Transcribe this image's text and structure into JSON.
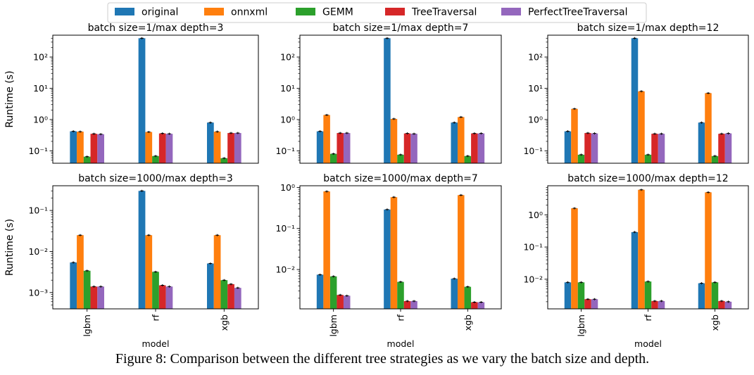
{
  "figure": {
    "caption": "Figure 8: Comparison between the different tree strategies as we vary the batch size and depth."
  },
  "legend": [
    {
      "name": "original",
      "color": "#1f77b4"
    },
    {
      "name": "onnxml",
      "color": "#ff7f0e"
    },
    {
      "name": "GEMM",
      "color": "#2ca02c"
    },
    {
      "name": "TreeTraversal",
      "color": "#d62728"
    },
    {
      "name": "PerfectTreeTraversal",
      "color": "#9467bd"
    }
  ],
  "chart_data": [
    {
      "type": "bar",
      "title": "batch size=1/max depth=3",
      "xlabel": "",
      "ylabel": "Runtime (s)",
      "yscale": "log",
      "ylim": [
        0.04,
        500
      ],
      "yticks": [
        0.1,
        1,
        10,
        100
      ],
      "ytick_labels": [
        "10⁻¹",
        "10⁰",
        "10¹",
        "10²"
      ],
      "categories": [
        "lgbm",
        "rf",
        "xgb"
      ],
      "show_xticks": false,
      "series": [
        {
          "name": "original",
          "values": [
            0.42,
            400,
            0.8
          ]
        },
        {
          "name": "onnxml",
          "values": [
            0.41,
            0.4,
            0.41
          ]
        },
        {
          "name": "GEMM",
          "values": [
            0.065,
            0.068,
            0.058
          ]
        },
        {
          "name": "TreeTraversal",
          "values": [
            0.35,
            0.36,
            0.37
          ]
        },
        {
          "name": "PerfectTreeTraversal",
          "values": [
            0.34,
            0.35,
            0.37
          ]
        }
      ]
    },
    {
      "type": "bar",
      "title": "batch size=1/max depth=7",
      "xlabel": "",
      "ylabel": "",
      "yscale": "log",
      "ylim": [
        0.04,
        500
      ],
      "yticks": [
        0.1,
        1,
        10,
        100
      ],
      "ytick_labels": [
        "10⁻¹",
        "10⁰",
        "10¹",
        "10²"
      ],
      "categories": [
        "lgbm",
        "rf",
        "xgb"
      ],
      "show_xticks": false,
      "series": [
        {
          "name": "original",
          "values": [
            0.42,
            400,
            0.8
          ]
        },
        {
          "name": "onnxml",
          "values": [
            1.4,
            1.05,
            1.2
          ]
        },
        {
          "name": "GEMM",
          "values": [
            0.08,
            0.075,
            0.068
          ]
        },
        {
          "name": "TreeTraversal",
          "values": [
            0.37,
            0.36,
            0.36
          ]
        },
        {
          "name": "PerfectTreeTraversal",
          "values": [
            0.37,
            0.35,
            0.36
          ]
        }
      ]
    },
    {
      "type": "bar",
      "title": "batch size=1/max depth=12",
      "xlabel": "",
      "ylabel": "",
      "yscale": "log",
      "ylim": [
        0.04,
        500
      ],
      "yticks": [
        0.1,
        1,
        10,
        100
      ],
      "ytick_labels": [
        "10⁻¹",
        "10⁰",
        "10¹",
        "10²"
      ],
      "categories": [
        "lgbm",
        "rf",
        "xgb"
      ],
      "show_xticks": false,
      "series": [
        {
          "name": "original",
          "values": [
            0.42,
            400,
            0.8
          ]
        },
        {
          "name": "onnxml",
          "values": [
            2.2,
            8,
            7
          ]
        },
        {
          "name": "GEMM",
          "values": [
            0.075,
            0.075,
            0.068
          ]
        },
        {
          "name": "TreeTraversal",
          "values": [
            0.37,
            0.35,
            0.35
          ]
        },
        {
          "name": "PerfectTreeTraversal",
          "values": [
            0.36,
            0.35,
            0.36
          ]
        }
      ]
    },
    {
      "type": "bar",
      "title": "batch size=1000/max depth=3",
      "xlabel": "model",
      "ylabel": "Runtime (s)",
      "yscale": "log",
      "ylim": [
        0.0004,
        0.4
      ],
      "yticks": [
        0.001,
        0.01,
        0.1
      ],
      "ytick_labels": [
        "10⁻³",
        "10⁻²",
        "10⁻¹"
      ],
      "categories": [
        "lgbm",
        "rf",
        "xgb"
      ],
      "show_xticks": true,
      "series": [
        {
          "name": "original",
          "values": [
            0.0054,
            0.3,
            0.0051
          ]
        },
        {
          "name": "onnxml",
          "values": [
            0.025,
            0.025,
            0.025
          ]
        },
        {
          "name": "GEMM",
          "values": [
            0.0034,
            0.0032,
            0.002
          ]
        },
        {
          "name": "TreeTraversal",
          "values": [
            0.0014,
            0.0015,
            0.0016
          ]
        },
        {
          "name": "PerfectTreeTraversal",
          "values": [
            0.0014,
            0.0014,
            0.0013
          ]
        }
      ]
    },
    {
      "type": "bar",
      "title": "batch size=1000/max depth=7",
      "xlabel": "model",
      "ylabel": "",
      "yscale": "log",
      "ylim": [
        0.0011,
        1.1
      ],
      "yticks": [
        0.01,
        0.1,
        1
      ],
      "ytick_labels": [
        "10⁻²",
        "10⁻¹",
        "10⁰"
      ],
      "categories": [
        "lgbm",
        "rf",
        "xgb"
      ],
      "show_xticks": true,
      "series": [
        {
          "name": "original",
          "values": [
            0.0075,
            0.29,
            0.006
          ]
        },
        {
          "name": "onnxml",
          "values": [
            0.8,
            0.58,
            0.65
          ]
        },
        {
          "name": "GEMM",
          "values": [
            0.0068,
            0.005,
            0.0038
          ]
        },
        {
          "name": "TreeTraversal",
          "values": [
            0.0024,
            0.0017,
            0.0016
          ]
        },
        {
          "name": "PerfectTreeTraversal",
          "values": [
            0.0023,
            0.0017,
            0.0016
          ]
        }
      ]
    },
    {
      "type": "bar",
      "title": "batch size=1000/max depth=12",
      "xlabel": "model",
      "ylabel": "",
      "yscale": "log",
      "ylim": [
        0.0012,
        8
      ],
      "yticks": [
        0.01,
        0.1,
        1
      ],
      "ytick_labels": [
        "10⁻²",
        "10⁻¹",
        "10⁰"
      ],
      "categories": [
        "lgbm",
        "rf",
        "xgb"
      ],
      "show_xticks": true,
      "series": [
        {
          "name": "original",
          "values": [
            0.008,
            0.29,
            0.0075
          ]
        },
        {
          "name": "onnxml",
          "values": [
            1.6,
            6,
            5
          ]
        },
        {
          "name": "GEMM",
          "values": [
            0.008,
            0.0085,
            0.008
          ]
        },
        {
          "name": "TreeTraversal",
          "values": [
            0.0024,
            0.0021,
            0.0021
          ]
        },
        {
          "name": "PerfectTreeTraversal",
          "values": [
            0.0024,
            0.0021,
            0.002
          ]
        }
      ]
    }
  ]
}
